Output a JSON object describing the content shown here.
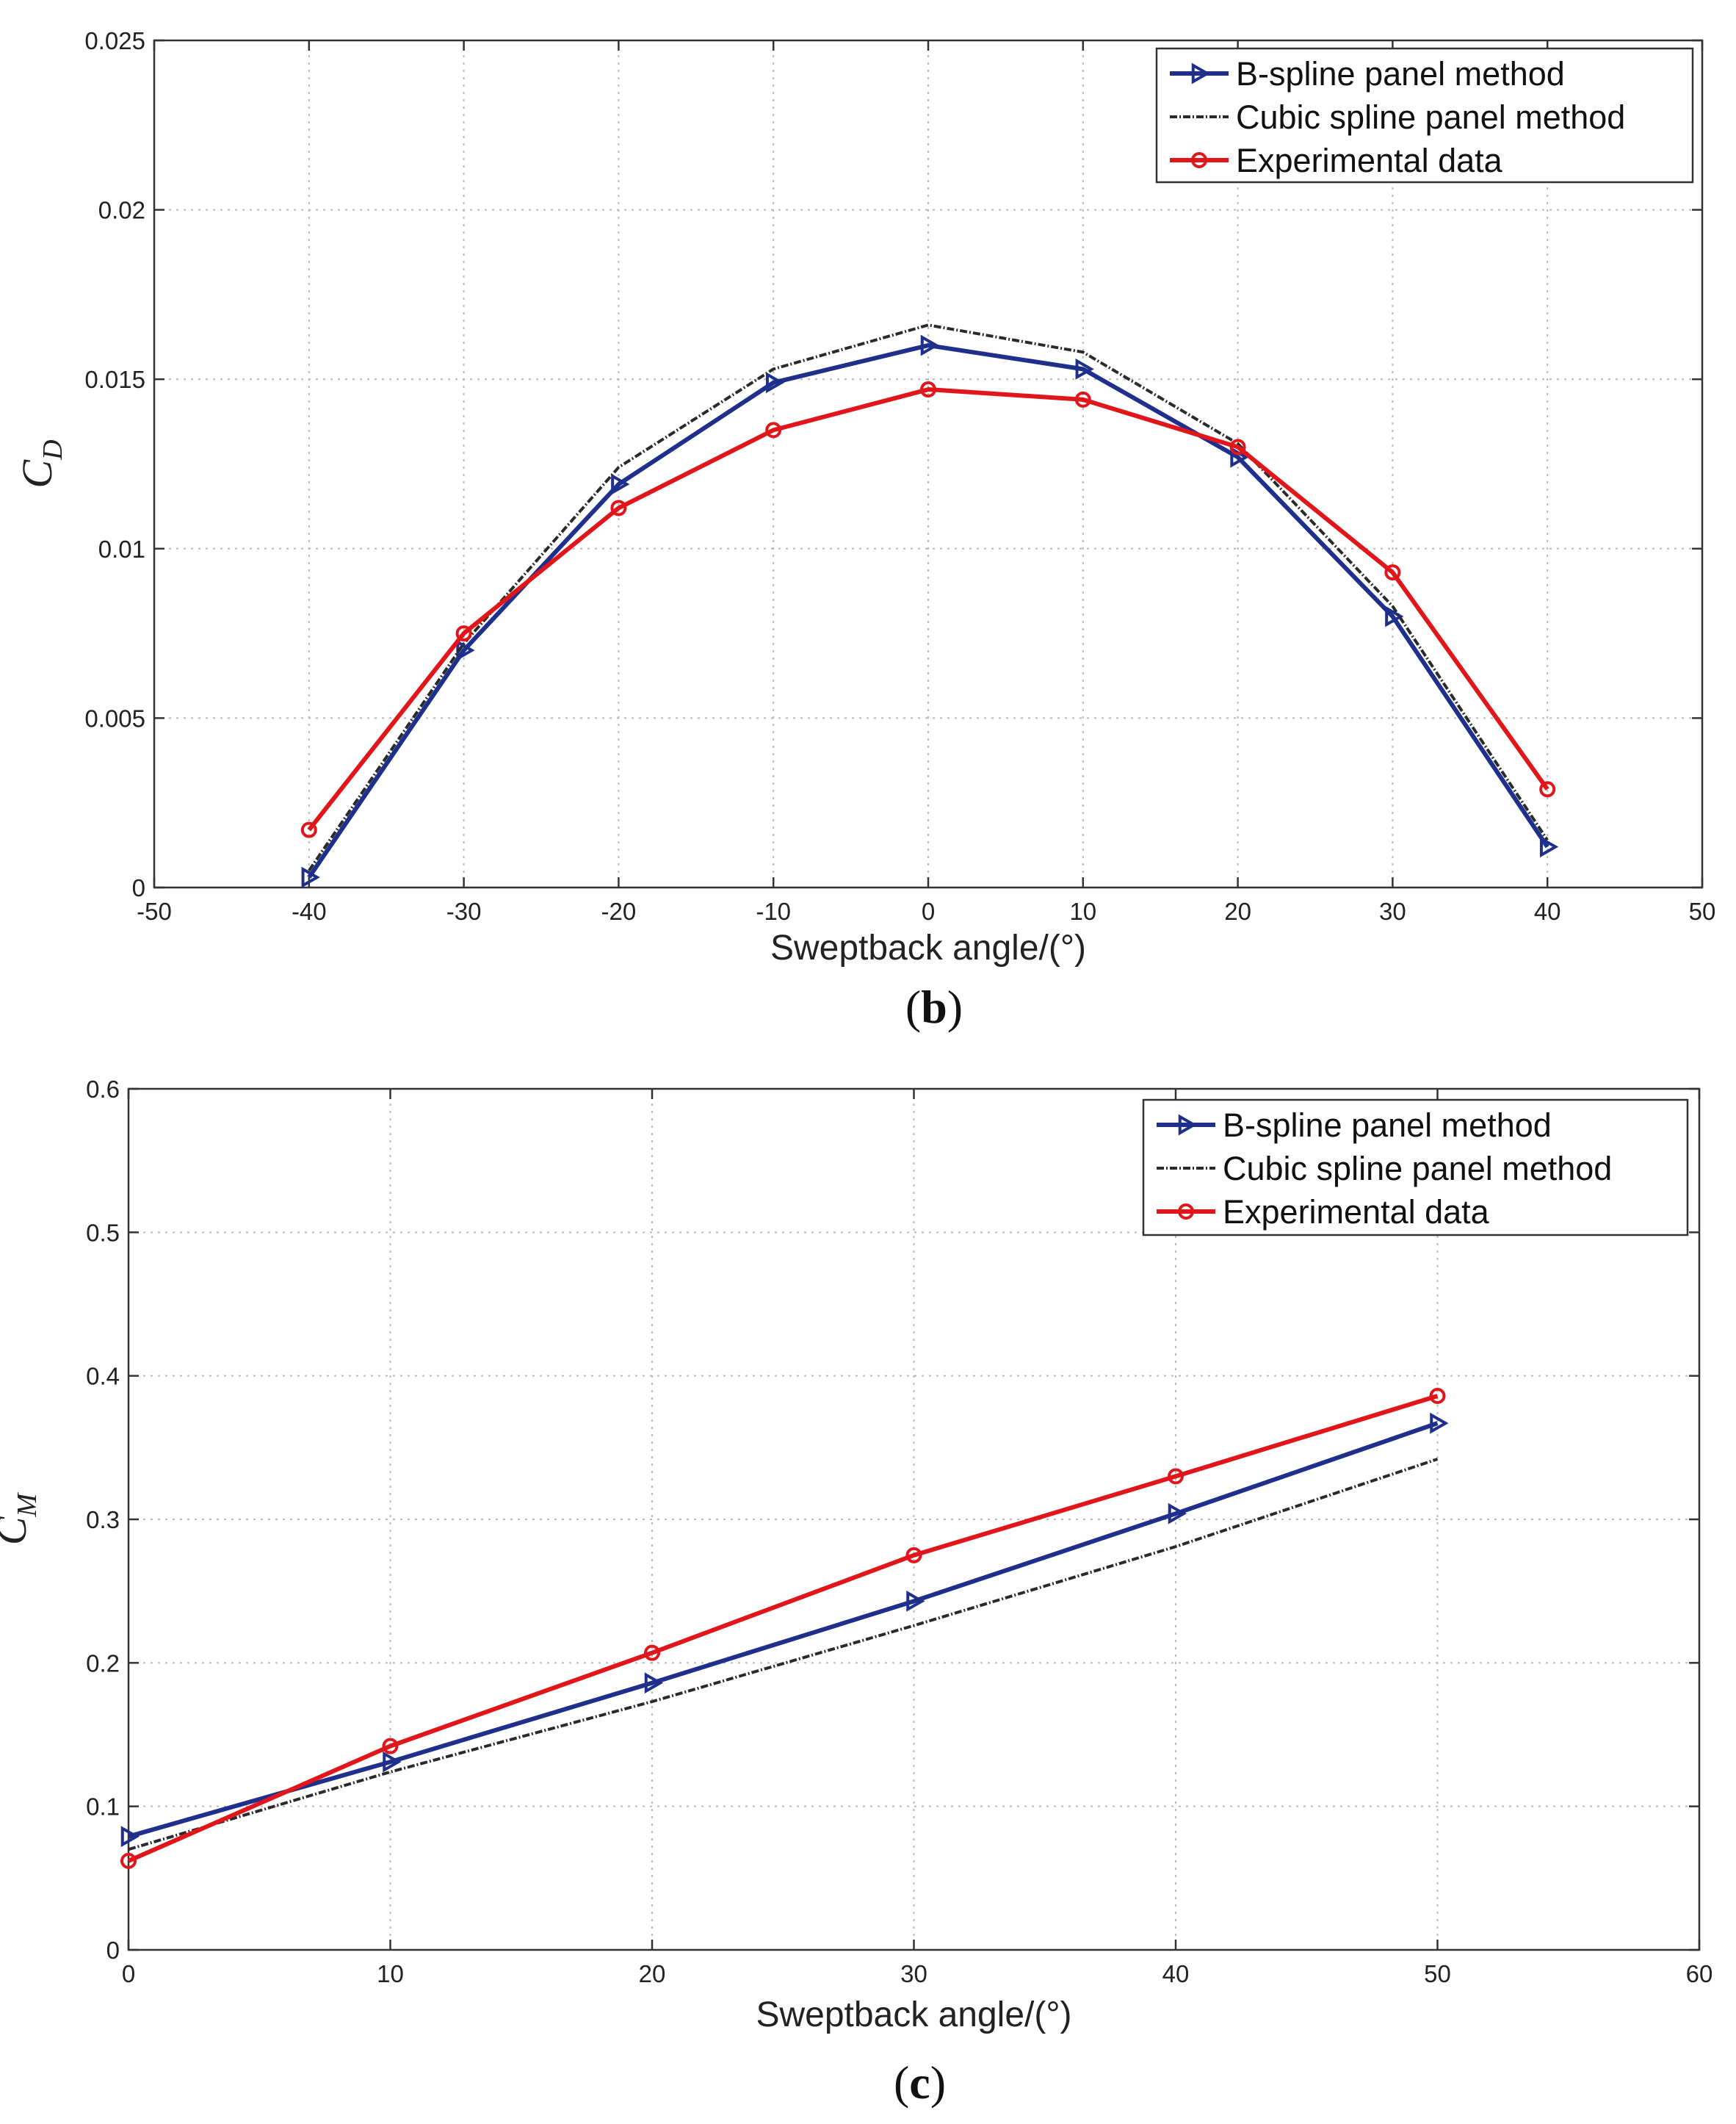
{
  "colors": {
    "bspline": "#1f2f8c",
    "cubic": "#2a2a2a",
    "experimental": "#e0161b"
  },
  "chart_data": [
    {
      "type": "line",
      "panel_label": "(b)",
      "panel_letter": "b",
      "xlabel": "Sweptback angle/(°)",
      "ylabel": "C",
      "ylabel_sub": "D",
      "xlim": [
        -50,
        50
      ],
      "ylim": [
        0,
        0.025
      ],
      "xticks": [
        -50,
        -40,
        -30,
        -20,
        -10,
        0,
        10,
        20,
        30,
        40,
        50
      ],
      "yticks": [
        0,
        0.005,
        0.01,
        0.015,
        0.02,
        0.025
      ],
      "xtick_labels": [
        "-50",
        "-40",
        "-30",
        "-20",
        "-10",
        "0",
        "10",
        "20",
        "30",
        "40",
        "50"
      ],
      "ytick_labels": [
        "0",
        "0.005",
        "0.01",
        "0.015",
        "0.02",
        "0.025"
      ],
      "legend_position": "top-right",
      "series": [
        {
          "name": "B-spline panel method",
          "x": [
            -40,
            -30,
            -20,
            -10,
            0,
            10,
            20,
            30,
            40
          ],
          "y": [
            0.0003,
            0.007,
            0.0119,
            0.0149,
            0.016,
            0.0153,
            0.0127,
            0.008,
            0.0012
          ]
        },
        {
          "name": "Cubic spline panel method",
          "x": [
            -40,
            -30,
            -20,
            -10,
            0,
            10,
            20,
            30,
            40
          ],
          "y": [
            0.0005,
            0.0072,
            0.0124,
            0.0153,
            0.0166,
            0.0158,
            0.0131,
            0.0083,
            0.0014
          ]
        },
        {
          "name": "Experimental data",
          "x": [
            -40,
            -30,
            -20,
            -10,
            0,
            10,
            20,
            30,
            40
          ],
          "y": [
            0.0017,
            0.0075,
            0.0112,
            0.0135,
            0.0147,
            0.0144,
            0.013,
            0.0093,
            0.0029
          ]
        }
      ]
    },
    {
      "type": "line",
      "panel_label": "(c)",
      "panel_letter": "c",
      "xlabel": "Sweptback angle/(°)",
      "ylabel": "C",
      "ylabel_sub": "M",
      "xlim": [
        0,
        60
      ],
      "ylim": [
        0,
        0.6
      ],
      "xticks": [
        0,
        10,
        20,
        30,
        40,
        50,
        60
      ],
      "yticks": [
        0,
        0.1,
        0.2,
        0.3,
        0.4,
        0.5,
        0.6
      ],
      "xtick_labels": [
        "0",
        "10",
        "20",
        "30",
        "40",
        "50",
        "60"
      ],
      "ytick_labels": [
        "0",
        "0.1",
        "0.2",
        "0.3",
        "0.4",
        "0.5",
        "0.6"
      ],
      "legend_position": "top-right",
      "series": [
        {
          "name": "B-spline panel method",
          "x": [
            0,
            10,
            20,
            30,
            40,
            50
          ],
          "y": [
            0.079,
            0.131,
            0.186,
            0.243,
            0.304,
            0.367
          ]
        },
        {
          "name": "Cubic spline panel method",
          "x": [
            0,
            10,
            20,
            30,
            40,
            50
          ],
          "y": [
            0.07,
            0.124,
            0.173,
            0.226,
            0.281,
            0.342
          ]
        },
        {
          "name": "Experimental data",
          "x": [
            0,
            10,
            20,
            30,
            40,
            50
          ],
          "y": [
            0.062,
            0.142,
            0.207,
            0.275,
            0.33,
            0.386
          ]
        }
      ]
    }
  ]
}
